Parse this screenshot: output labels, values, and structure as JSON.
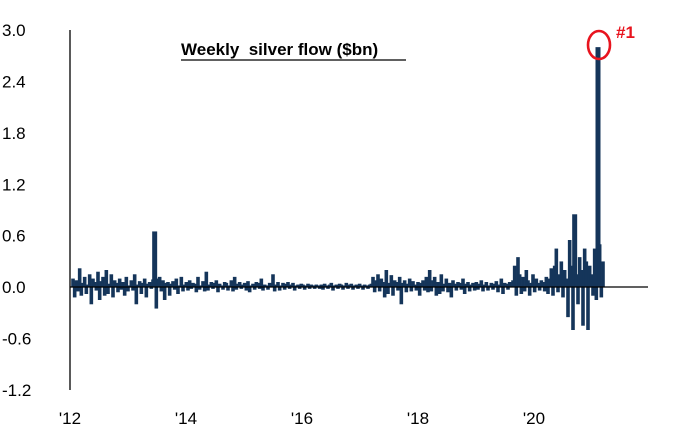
{
  "chart_data": {
    "type": "bar",
    "title": "Weekly  silver flow ($bn)",
    "xlabel": "",
    "ylabel": "",
    "ylim": [
      -1.2,
      3.0
    ],
    "yticks": [
      "3.0",
      "2.4",
      "1.8",
      "1.2",
      "0.6",
      "0.0",
      "-0.6",
      "-1.2"
    ],
    "xticks": [
      "'12",
      "'14",
      "'16",
      "'18",
      "'20"
    ],
    "x_start": 2012.0,
    "x_end": 2022.0,
    "bar_color": "#15355a",
    "annotation": {
      "text": "#1",
      "color": "#e8141e",
      "points_to": "peak weekly flow of 2.8 in early 2021"
    },
    "weekly_flows": [
      0.1,
      -0.12,
      0.08,
      -0.05,
      0.22,
      -0.1,
      0.05,
      0.12,
      -0.08,
      0.03,
      0.15,
      -0.2,
      0.1,
      0.06,
      -0.04,
      0.18,
      -0.15,
      0.07,
      0.12,
      -0.1,
      0.2,
      -0.08,
      0.04,
      0.15,
      -0.12,
      0.08,
      0.05,
      -0.06,
      0.1,
      -0.03,
      0.06,
      -0.1,
      0.12,
      -0.05,
      0.02,
      0.08,
      -0.04,
      0.15,
      -0.2,
      0.03,
      0.07,
      -0.08,
      0.05,
      0.1,
      -0.12,
      0.04,
      0.06,
      -0.02,
      0.09,
      0.65,
      -0.25,
      0.1,
      0.12,
      -0.05,
      0.08,
      -0.15,
      0.05,
      0.06,
      -0.1,
      0.04,
      0.07,
      -0.03,
      0.1,
      -0.08,
      0.02,
      0.12,
      -0.05,
      0.03,
      0.06,
      -0.04,
      0.08,
      -0.02,
      0.05,
      0.04,
      -0.06,
      0.12,
      -0.03,
      0.02,
      0.07,
      -0.05,
      0.18,
      -0.04,
      0.03,
      0.06,
      -0.02,
      0.05,
      0.08,
      -0.06,
      0.04,
      0.02,
      -0.03,
      0.06,
      0.05,
      -0.04,
      0.02,
      0.08,
      -0.05,
      0.12,
      -0.03,
      0.04,
      0.06,
      -0.02,
      0.03,
      0.05,
      -0.04,
      0.07,
      -0.06,
      0.02,
      0.04,
      -0.03,
      0.06,
      0.05,
      -0.02,
      0.1,
      -0.04,
      0.03,
      0.02,
      -0.03,
      0.05,
      0.04,
      0.15,
      -0.05,
      0.03,
      0.06,
      -0.04,
      0.02,
      0.05,
      -0.03,
      0.04,
      0.06,
      -0.02,
      0.03,
      0.05,
      -0.04,
      0.02,
      0.03,
      -0.02,
      0.04,
      0.03,
      -0.03,
      0.02,
      0.04,
      -0.02,
      0.03,
      0.02,
      -0.02,
      0.03,
      0.02,
      -0.02,
      0.03,
      -0.03,
      0.04,
      0.02,
      -0.02,
      0.03,
      0.05,
      -0.04,
      0.02,
      0.03,
      -0.02,
      0.04,
      0.03,
      -0.03,
      0.02,
      0.05,
      -0.02,
      0.03,
      0.04,
      -0.03,
      0.02,
      0.03,
      -0.02,
      0.04,
      0.02,
      -0.03,
      0.03,
      0.02,
      -0.02,
      0.03,
      0.04,
      0.12,
      -0.06,
      0.08,
      0.15,
      -0.05,
      0.1,
      0.06,
      -0.12,
      0.2,
      -0.08,
      0.05,
      0.14,
      -0.1,
      0.08,
      0.06,
      -0.04,
      0.12,
      -0.2,
      0.05,
      0.08,
      -0.06,
      0.04,
      0.1,
      -0.05,
      0.07,
      0.03,
      -0.04,
      0.06,
      -0.1,
      0.05,
      0.08,
      -0.04,
      0.12,
      -0.06,
      0.2,
      -0.05,
      0.08,
      0.12,
      -0.1,
      0.06,
      -0.08,
      0.15,
      -0.05,
      0.04,
      0.1,
      -0.06,
      0.05,
      -0.12,
      0.08,
      0.04,
      -0.04,
      0.06,
      0.05,
      -0.03,
      0.1,
      -0.08,
      0.04,
      0.06,
      -0.05,
      0.03,
      0.05,
      -0.04,
      0.06,
      -0.03,
      0.04,
      0.08,
      -0.05,
      0.03,
      0.06,
      -0.04,
      0.02,
      0.05,
      -0.03,
      0.04,
      0.07,
      -0.06,
      0.03,
      0.1,
      -0.08,
      0.05,
      0.04,
      -0.03,
      0.06,
      0.02,
      0.08,
      0.25,
      -0.1,
      0.35,
      0.15,
      -0.08,
      0.12,
      -0.05,
      0.2,
      0.08,
      -0.1,
      0.05,
      0.15,
      -0.06,
      0.1,
      0.05,
      -0.04,
      0.08,
      0.06,
      -0.05,
      0.12,
      -0.08,
      0.1,
      0.22,
      -0.1,
      0.25,
      0.45,
      -0.06,
      0.15,
      0.3,
      -0.12,
      0.2,
      0.1,
      -0.35,
      0.55,
      0.25,
      -0.5,
      0.85,
      0.15,
      -0.2,
      0.35,
      0.2,
      -0.45,
      0.45,
      0.3,
      -0.5,
      0.25,
      0.15,
      -0.1,
      0.45,
      -0.15,
      2.8,
      0.5,
      -0.12,
      0.3
    ]
  }
}
